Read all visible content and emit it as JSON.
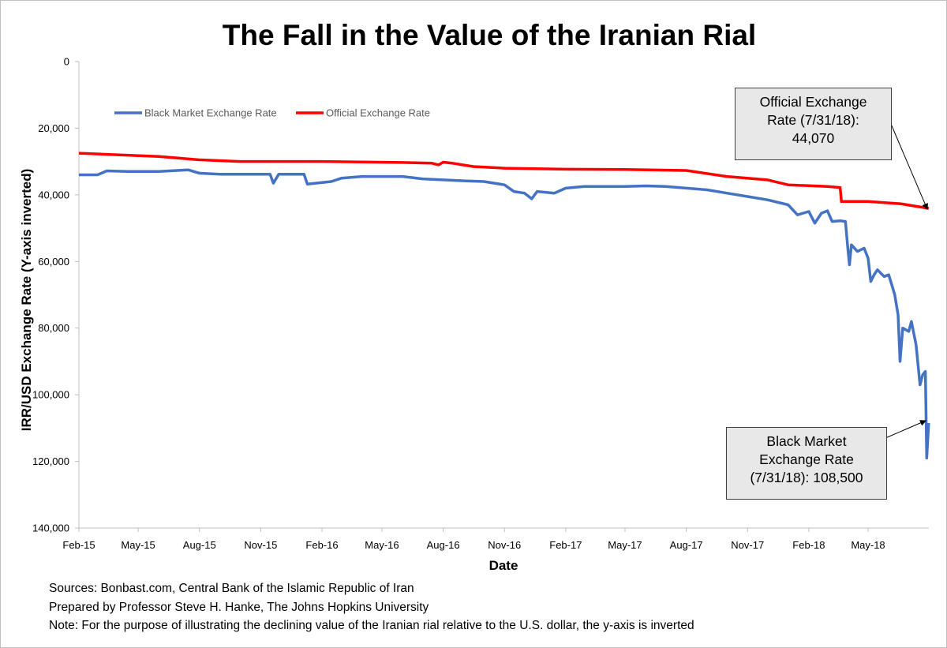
{
  "title": "The Fall in the Value of the Iranian Rial",
  "xlabel": "Date",
  "ylabel": "IRR/USD Exchange Rate (Y-axis inverted)",
  "notes": [
    "Sources: Bonbast.com, Central Bank of the Islamic Republic of Iran",
    "Prepared by Professor Steve H. Hanke, The Johns Hopkins University",
    "Note: For the purpose of illustrating the declining value of the Iranian rial relative to the U.S. dollar, the y-axis is inverted"
  ],
  "callouts": {
    "official": [
      "Official Exchange",
      "Rate (7/31/18):",
      "44,070"
    ],
    "black": [
      "Black Market",
      "Exchange Rate",
      "(7/31/18): 108,500"
    ]
  },
  "chart_data": {
    "type": "line",
    "title": "The Fall in the Value of the Iranian Rial",
    "xlabel": "Date",
    "ylabel": "IRR/USD Exchange Rate (Y-axis inverted)",
    "ylim": [
      0,
      140000
    ],
    "y_inverted": true,
    "yticks": [
      0,
      20000,
      40000,
      60000,
      80000,
      100000,
      120000,
      140000
    ],
    "ytick_labels": [
      "0",
      "20,000",
      "40,000",
      "60,000",
      "80,000",
      "100,000",
      "120,000",
      "140,000"
    ],
    "x_range": [
      "2015-02-01",
      "2018-07-31"
    ],
    "xticks": [
      "2015-02-01",
      "2015-05-01",
      "2015-08-01",
      "2015-11-01",
      "2016-02-01",
      "2016-05-01",
      "2016-08-01",
      "2016-11-01",
      "2017-02-01",
      "2017-05-01",
      "2017-08-01",
      "2017-11-01",
      "2018-02-01",
      "2018-05-01"
    ],
    "xtick_labels": [
      "Feb-15",
      "May-15",
      "Aug-15",
      "Nov-15",
      "Feb-16",
      "May-16",
      "Aug-16",
      "Nov-16",
      "Feb-17",
      "May-17",
      "Aug-17",
      "Nov-17",
      "Feb-18",
      "May-18"
    ],
    "grid": false,
    "legend_position": "top-left",
    "series": [
      {
        "name": "Black Market Exchange Rate",
        "color": "#4472c4",
        "points": [
          [
            "2015-02-01",
            34000
          ],
          [
            "2015-03-01",
            34000
          ],
          [
            "2015-03-15",
            32800
          ],
          [
            "2015-04-15",
            33000
          ],
          [
            "2015-06-01",
            33000
          ],
          [
            "2015-07-15",
            32500
          ],
          [
            "2015-08-01",
            33500
          ],
          [
            "2015-09-01",
            33800
          ],
          [
            "2015-10-15",
            33800
          ],
          [
            "2015-11-15",
            33800
          ],
          [
            "2015-11-20",
            36500
          ],
          [
            "2015-11-28",
            33800
          ],
          [
            "2016-01-05",
            33800
          ],
          [
            "2016-01-10",
            36800
          ],
          [
            "2016-02-15",
            36000
          ],
          [
            "2016-03-01",
            35000
          ],
          [
            "2016-04-01",
            34500
          ],
          [
            "2016-05-01",
            34500
          ],
          [
            "2016-06-01",
            34500
          ],
          [
            "2016-07-01",
            35200
          ],
          [
            "2016-08-01",
            35500
          ],
          [
            "2016-09-01",
            35800
          ],
          [
            "2016-10-01",
            36000
          ],
          [
            "2016-11-01",
            37000
          ],
          [
            "2016-11-15",
            39000
          ],
          [
            "2016-12-01",
            39500
          ],
          [
            "2016-12-12",
            41200
          ],
          [
            "2016-12-20",
            39000
          ],
          [
            "2017-01-15",
            39500
          ],
          [
            "2017-02-01",
            38000
          ],
          [
            "2017-03-01",
            37500
          ],
          [
            "2017-04-01",
            37500
          ],
          [
            "2017-05-01",
            37500
          ],
          [
            "2017-06-01",
            37300
          ],
          [
            "2017-07-01",
            37500
          ],
          [
            "2017-08-01",
            38000
          ],
          [
            "2017-09-01",
            38500
          ],
          [
            "2017-10-01",
            39500
          ],
          [
            "2017-11-01",
            40500
          ],
          [
            "2017-12-01",
            41500
          ],
          [
            "2018-01-01",
            43000
          ],
          [
            "2018-01-15",
            46000
          ],
          [
            "2018-02-01",
            45000
          ],
          [
            "2018-02-10",
            48500
          ],
          [
            "2018-02-20",
            45500
          ],
          [
            "2018-03-01",
            44800
          ],
          [
            "2018-03-08",
            48000
          ],
          [
            "2018-03-20",
            47800
          ],
          [
            "2018-03-28",
            48000
          ],
          [
            "2018-04-01",
            57000
          ],
          [
            "2018-04-03",
            61000
          ],
          [
            "2018-04-06",
            55000
          ],
          [
            "2018-04-15",
            57000
          ],
          [
            "2018-04-25",
            56000
          ],
          [
            "2018-05-01",
            59000
          ],
          [
            "2018-05-05",
            66000
          ],
          [
            "2018-05-10",
            64000
          ],
          [
            "2018-05-15",
            62500
          ],
          [
            "2018-05-25",
            64500
          ],
          [
            "2018-06-01",
            64000
          ],
          [
            "2018-06-10",
            70000
          ],
          [
            "2018-06-15",
            76000
          ],
          [
            "2018-06-18",
            90000
          ],
          [
            "2018-06-22",
            80000
          ],
          [
            "2018-07-01",
            81000
          ],
          [
            "2018-07-05",
            78000
          ],
          [
            "2018-07-12",
            85000
          ],
          [
            "2018-07-18",
            97000
          ],
          [
            "2018-07-22",
            94000
          ],
          [
            "2018-07-26",
            93000
          ],
          [
            "2018-07-28",
            119000
          ],
          [
            "2018-07-31",
            108500
          ]
        ]
      },
      {
        "name": "Official Exchange Rate",
        "color": "#ff0000",
        "points": [
          [
            "2015-02-01",
            27500
          ],
          [
            "2015-06-01",
            28500
          ],
          [
            "2015-08-01",
            29500
          ],
          [
            "2015-10-01",
            30000
          ],
          [
            "2016-02-01",
            30000
          ],
          [
            "2016-06-01",
            30300
          ],
          [
            "2016-07-15",
            30500
          ],
          [
            "2016-07-25",
            31000
          ],
          [
            "2016-08-01",
            30200
          ],
          [
            "2016-08-15",
            30500
          ],
          [
            "2016-09-15",
            31500
          ],
          [
            "2016-11-01",
            32000
          ],
          [
            "2017-02-01",
            32300
          ],
          [
            "2017-05-01",
            32400
          ],
          [
            "2017-08-01",
            32700
          ],
          [
            "2017-10-01",
            34500
          ],
          [
            "2017-12-01",
            35500
          ],
          [
            "2018-01-01",
            37000
          ],
          [
            "2018-03-01",
            37500
          ],
          [
            "2018-03-20",
            37800
          ],
          [
            "2018-03-22",
            42000
          ],
          [
            "2018-05-01",
            42000
          ],
          [
            "2018-06-20",
            42700
          ],
          [
            "2018-07-31",
            44070
          ]
        ]
      }
    ]
  }
}
